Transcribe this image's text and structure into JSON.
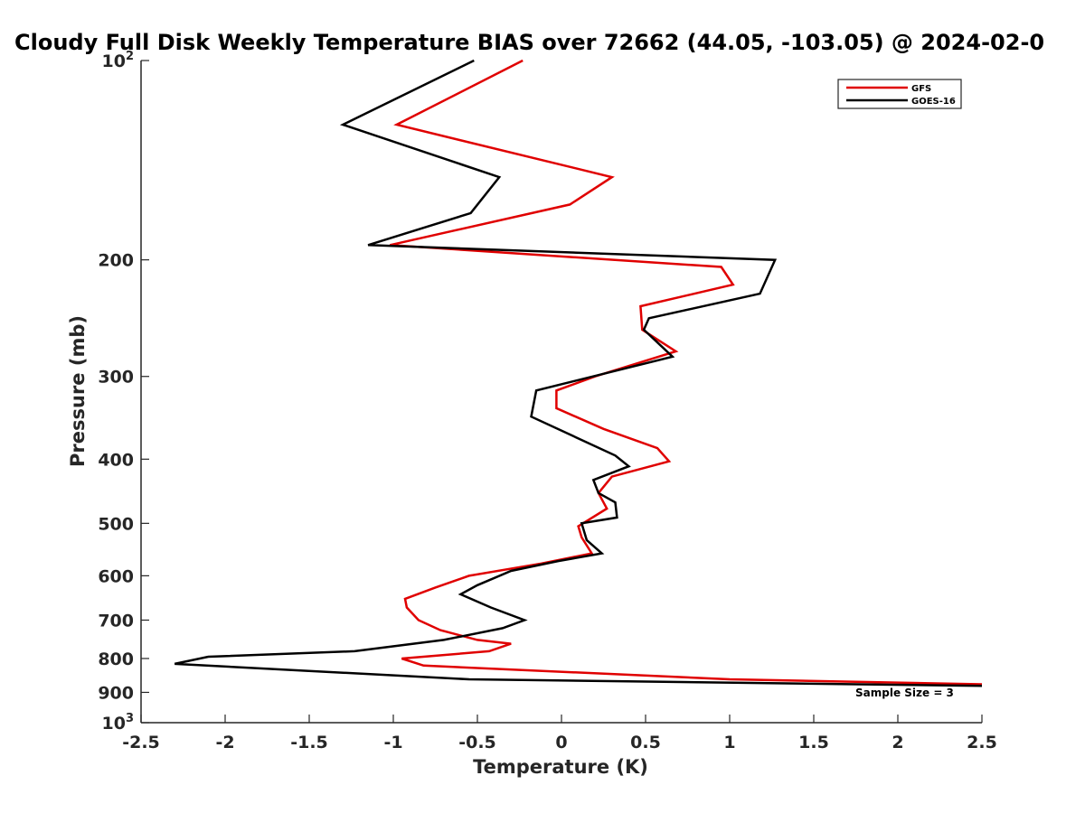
{
  "chart_data": {
    "type": "line",
    "title": "Cloudy Full Disk Weekly Temperature BIAS over 72662 (44.05, -103.05) @ 2024-02-0",
    "xlabel": "Temperature (K)",
    "ylabel": "Pressure (mb)",
    "xlim": [
      -2.5,
      2.5
    ],
    "ylim": [
      100,
      1000
    ],
    "y_scale": "log",
    "y_reversed": true,
    "grid": false,
    "legend_position": "top-right",
    "x_ticks": [
      -2.5,
      -2,
      -1.5,
      -1,
      -0.5,
      0,
      0.5,
      1,
      1.5,
      2,
      2.5
    ],
    "x_tick_labels": [
      "-2.5",
      "-2",
      "-1.5",
      "-1",
      "-0.5",
      "0",
      "0.5",
      "1",
      "1.5",
      "2",
      "2.5"
    ],
    "y_ticks": [
      100,
      200,
      300,
      400,
      500,
      600,
      700,
      800,
      900,
      1000
    ],
    "y_tick_labels": [
      {
        "base": "10",
        "exp": "2"
      },
      {
        "base": "200",
        "exp": ""
      },
      {
        "base": "300",
        "exp": ""
      },
      {
        "base": "400",
        "exp": ""
      },
      {
        "base": "500",
        "exp": ""
      },
      {
        "base": "600",
        "exp": ""
      },
      {
        "base": "700",
        "exp": ""
      },
      {
        "base": "800",
        "exp": ""
      },
      {
        "base": "900",
        "exp": ""
      },
      {
        "base": "10",
        "exp": "3"
      }
    ],
    "annotation": "Sample Size = 3",
    "series": [
      {
        "name": "GFS",
        "color": "#e00000",
        "points": [
          [
            -0.23,
            100
          ],
          [
            -0.98,
            125
          ],
          [
            0.3,
            150
          ],
          [
            0.05,
            165
          ],
          [
            -1.02,
            190
          ],
          [
            0.95,
            205
          ],
          [
            1.02,
            218
          ],
          [
            0.47,
            235
          ],
          [
            0.48,
            255
          ],
          [
            0.68,
            275
          ],
          [
            0.2,
            300
          ],
          [
            -0.03,
            315
          ],
          [
            -0.03,
            335
          ],
          [
            0.25,
            360
          ],
          [
            0.57,
            385
          ],
          [
            0.64,
            403
          ],
          [
            0.3,
            425
          ],
          [
            0.22,
            450
          ],
          [
            0.27,
            475
          ],
          [
            0.1,
            505
          ],
          [
            0.12,
            525
          ],
          [
            0.18,
            555
          ],
          [
            -0.12,
            575
          ],
          [
            -0.55,
            600
          ],
          [
            -0.75,
            625
          ],
          [
            -0.93,
            650
          ],
          [
            -0.92,
            670
          ],
          [
            -0.85,
            700
          ],
          [
            -0.72,
            725
          ],
          [
            -0.5,
            750
          ],
          [
            -0.3,
            760
          ],
          [
            -0.43,
            780
          ],
          [
            -0.95,
            800
          ],
          [
            -0.82,
            820
          ],
          [
            1.0,
            860
          ],
          [
            2.5,
            875
          ]
        ]
      },
      {
        "name": "GOES-16",
        "color": "#000000",
        "points": [
          [
            -0.52,
            100
          ],
          [
            -1.3,
            125
          ],
          [
            -0.37,
            150
          ],
          [
            -0.54,
            170
          ],
          [
            -1.15,
            190
          ],
          [
            1.27,
            200
          ],
          [
            1.18,
            225
          ],
          [
            0.52,
            245
          ],
          [
            0.49,
            255
          ],
          [
            0.66,
            280
          ],
          [
            -0.15,
            315
          ],
          [
            -0.18,
            345
          ],
          [
            0.32,
            395
          ],
          [
            0.4,
            410
          ],
          [
            0.19,
            430
          ],
          [
            0.22,
            450
          ],
          [
            0.32,
            465
          ],
          [
            0.33,
            490
          ],
          [
            0.12,
            500
          ],
          [
            0.15,
            530
          ],
          [
            0.24,
            555
          ],
          [
            -0.02,
            570
          ],
          [
            -0.3,
            590
          ],
          [
            -0.5,
            620
          ],
          [
            -0.6,
            640
          ],
          [
            -0.42,
            670
          ],
          [
            -0.22,
            700
          ],
          [
            -0.35,
            720
          ],
          [
            -0.7,
            750
          ],
          [
            -1.23,
            780
          ],
          [
            -2.1,
            795
          ],
          [
            -2.3,
            815
          ],
          [
            -0.55,
            860
          ],
          [
            2.5,
            880
          ]
        ]
      }
    ]
  }
}
